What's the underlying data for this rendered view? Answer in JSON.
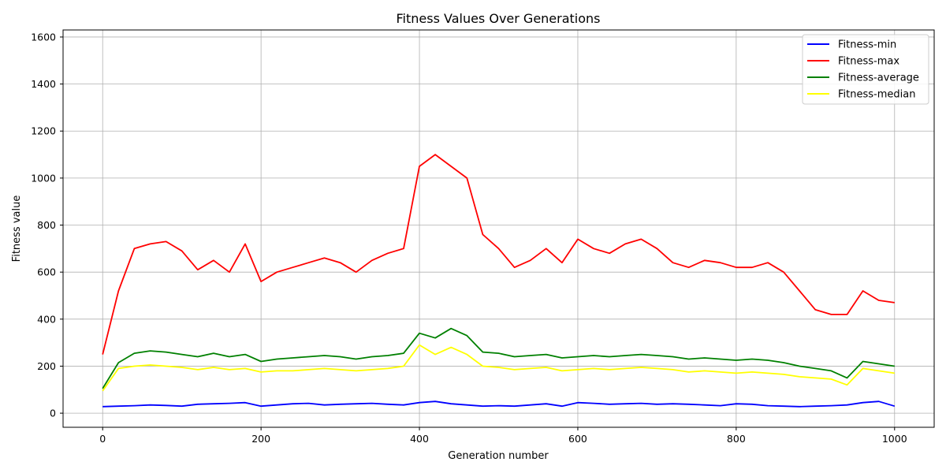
{
  "chart_data": {
    "type": "line",
    "title": "Fitness Values Over Generations",
    "xlabel": "Generation number",
    "ylabel": "Fitness value",
    "xlim": [
      -50,
      1050
    ],
    "ylim": [
      -60,
      1630
    ],
    "xticks": [
      0,
      200,
      400,
      600,
      800,
      1000
    ],
    "yticks": [
      0,
      200,
      400,
      600,
      800,
      1000,
      1200,
      1400,
      1600
    ],
    "grid": true,
    "legend_position": "top-right",
    "x": [
      0,
      20,
      40,
      60,
      80,
      100,
      120,
      140,
      160,
      180,
      200,
      220,
      240,
      260,
      280,
      300,
      320,
      340,
      360,
      380,
      400,
      420,
      440,
      460,
      480,
      500,
      520,
      540,
      560,
      580,
      600,
      620,
      640,
      660,
      680,
      700,
      720,
      740,
      760,
      780,
      800,
      820,
      840,
      860,
      880,
      900,
      920,
      940,
      960,
      980,
      1000
    ],
    "series": [
      {
        "name": "Fitness-min",
        "color": "#0000ff",
        "values": [
          28,
          30,
          32,
          35,
          33,
          30,
          38,
          40,
          42,
          45,
          30,
          35,
          40,
          42,
          35,
          38,
          40,
          42,
          38,
          35,
          45,
          50,
          40,
          35,
          30,
          32,
          30,
          35,
          40,
          30,
          45,
          42,
          38,
          40,
          42,
          38,
          40,
          38,
          35,
          32,
          40,
          38,
          32,
          30,
          28,
          30,
          32,
          35,
          45,
          50,
          30
        ]
      },
      {
        "name": "Fitness-max",
        "color": "#ff0000",
        "values": [
          250,
          520,
          700,
          720,
          730,
          690,
          610,
          650,
          600,
          720,
          560,
          600,
          620,
          640,
          660,
          640,
          600,
          650,
          680,
          700,
          1050,
          1100,
          1050,
          1000,
          760,
          700,
          620,
          650,
          700,
          640,
          740,
          700,
          680,
          720,
          740,
          700,
          640,
          620,
          650,
          640,
          620,
          620,
          640,
          600,
          520,
          440,
          420,
          420,
          520,
          480,
          470
        ]
      },
      {
        "name": "Fitness-average",
        "color": "#008000",
        "values": [
          105,
          215,
          255,
          265,
          260,
          250,
          240,
          255,
          240,
          250,
          220,
          230,
          235,
          240,
          245,
          240,
          230,
          240,
          245,
          255,
          340,
          320,
          360,
          330,
          260,
          255,
          240,
          245,
          250,
          235,
          240,
          245,
          240,
          245,
          250,
          245,
          240,
          230,
          235,
          230,
          225,
          230,
          225,
          215,
          200,
          190,
          180,
          150,
          220,
          210,
          200
        ]
      },
      {
        "name": "Fitness-median",
        "color": "#ffff00",
        "values": [
          95,
          190,
          200,
          205,
          200,
          195,
          185,
          195,
          185,
          190,
          175,
          180,
          180,
          185,
          190,
          185,
          180,
          185,
          190,
          200,
          290,
          250,
          280,
          250,
          200,
          195,
          185,
          190,
          195,
          180,
          185,
          190,
          185,
          190,
          195,
          190,
          185,
          175,
          180,
          175,
          170,
          175,
          170,
          165,
          155,
          150,
          145,
          120,
          190,
          180,
          170
        ]
      }
    ]
  }
}
